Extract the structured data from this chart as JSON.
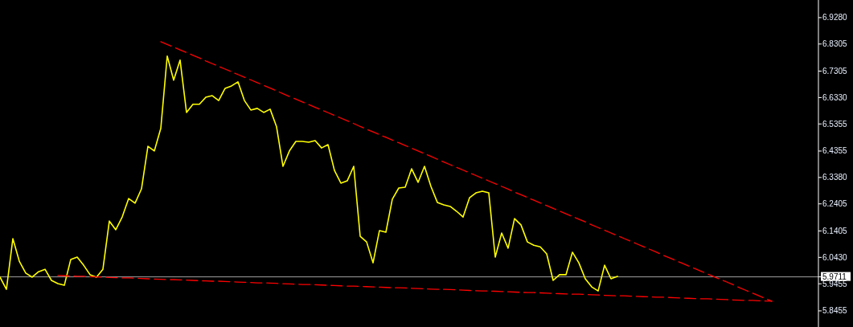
{
  "chart_data": {
    "type": "line",
    "categories": [
      null,
      null,
      null,
      null,
      null,
      null,
      null,
      null,
      null,
      null,
      null,
      null,
      null,
      null,
      null,
      null,
      null,
      null,
      null,
      null,
      null,
      null,
      null,
      null,
      null,
      null,
      null,
      null,
      null,
      null,
      null,
      null,
      null,
      null,
      null,
      null,
      null,
      null,
      null,
      null,
      null,
      null,
      null,
      null,
      null,
      null,
      null,
      null,
      null,
      null,
      null,
      null,
      null,
      null,
      null,
      null,
      null,
      null,
      null,
      null,
      null,
      null,
      null,
      null,
      null,
      null,
      null,
      null,
      null,
      null,
      null,
      null,
      null,
      null,
      null,
      null,
      null,
      null,
      null,
      null,
      null,
      null,
      null,
      null,
      null,
      null,
      null,
      null,
      null,
      null,
      null,
      null,
      null,
      null,
      null,
      null,
      null,
      null,
      null,
      null,
      null,
      null,
      null,
      null,
      null,
      null,
      null,
      null,
      null,
      null,
      null,
      null,
      null,
      null,
      null,
      null,
      null,
      null,
      null,
      null,
      null
    ],
    "ylim": [
      5.786,
      6.993
    ],
    "yticks": [
      {
        "value": 5.8455,
        "label": "5.8455"
      },
      {
        "value": 5.9455,
        "label": "5.9455"
      },
      {
        "value": 6.043,
        "label": "6.0430"
      },
      {
        "value": 6.1405,
        "label": "6.1405"
      },
      {
        "value": 6.2405,
        "label": "6.2405"
      },
      {
        "value": 6.338,
        "label": "6.3380"
      },
      {
        "value": 6.4355,
        "label": "6.4355"
      },
      {
        "value": 6.5355,
        "label": "6.5355"
      },
      {
        "value": 6.633,
        "label": "6.6330"
      },
      {
        "value": 6.7305,
        "label": "6.7305"
      },
      {
        "value": 6.8305,
        "label": "6.8305"
      },
      {
        "value": 6.928,
        "label": "6.9280"
      }
    ],
    "tick_labels": "y",
    "grid": false,
    "marker": "none",
    "line_style": "solid",
    "ref_lines": [
      {
        "axis": "y",
        "value": 5.9711,
        "label": "5.9711",
        "color": "#a0a0a0"
      }
    ],
    "series": [
      {
        "color": "#ffff00",
        "values": [
          5.97,
          5.925,
          6.112,
          6.029,
          5.985,
          5.97,
          5.99,
          5.999,
          5.958,
          5.946,
          5.94,
          6.035,
          6.044,
          6.014,
          5.979,
          5.97,
          5.999,
          6.177,
          6.145,
          6.192,
          6.26,
          6.243,
          6.296,
          6.453,
          6.436,
          6.519,
          6.786,
          6.697,
          6.771,
          6.578,
          6.608,
          6.608,
          6.634,
          6.64,
          6.622,
          6.667,
          6.676,
          6.691,
          6.622,
          6.587,
          6.593,
          6.578,
          6.59,
          6.525,
          6.379,
          6.436,
          6.471,
          6.471,
          6.468,
          6.474,
          6.447,
          6.459,
          6.364,
          6.317,
          6.326,
          6.379,
          6.121,
          6.1,
          6.023,
          6.142,
          6.136,
          6.258,
          6.299,
          6.302,
          6.37,
          6.32,
          6.379,
          6.305,
          6.246,
          6.237,
          6.231,
          6.213,
          6.192,
          6.263,
          6.281,
          6.287,
          6.281,
          6.044,
          6.133,
          6.077,
          6.186,
          6.163,
          6.1,
          6.088,
          6.082,
          6.056,
          5.958,
          5.979,
          5.979,
          6.062,
          6.023,
          5.964,
          5.934,
          5.919,
          6.014,
          5.964,
          5.973,
          null,
          null,
          null,
          null,
          null,
          null,
          null,
          null,
          null,
          null,
          null,
          null,
          null,
          null,
          null,
          null,
          null,
          null,
          null,
          null,
          null,
          null,
          null,
          null
        ]
      },
      {
        "color": "#ff0000",
        "line_style": "dashed",
        "values": [
          null,
          null,
          null,
          null,
          null,
          null,
          null,
          null,
          null,
          null,
          null,
          null,
          null,
          null,
          null,
          null,
          null,
          null,
          null,
          null,
          null,
          null,
          null,
          null,
          null,
          6.839,
          6.829,
          6.819,
          6.809,
          6.799,
          6.789,
          6.779,
          6.768,
          6.758,
          6.748,
          6.738,
          6.728,
          6.718,
          6.708,
          6.698,
          6.688,
          6.678,
          6.668,
          6.658,
          6.647,
          6.637,
          6.627,
          6.617,
          6.607,
          6.597,
          6.587,
          6.577,
          6.567,
          6.557,
          6.547,
          6.537,
          6.526,
          6.516,
          6.506,
          6.496,
          6.486,
          6.476,
          6.466,
          6.456,
          6.446,
          6.436,
          6.426,
          6.416,
          6.405,
          6.395,
          6.385,
          6.375,
          6.365,
          6.355,
          6.345,
          6.335,
          6.325,
          6.315,
          6.305,
          6.295,
          6.284,
          6.274,
          6.264,
          6.254,
          6.244,
          6.234,
          6.224,
          6.214,
          6.204,
          6.194,
          6.184,
          6.174,
          6.163,
          6.153,
          6.143,
          6.133,
          6.123,
          6.113,
          6.103,
          6.093,
          6.083,
          6.073,
          6.063,
          6.052,
          6.042,
          6.032,
          6.022,
          6.012,
          6.002,
          5.992,
          5.982,
          5.972,
          5.962,
          5.952,
          5.942,
          5.931,
          5.921,
          5.911,
          5.901,
          5.891,
          5.881
        ]
      },
      {
        "color": "#ff0000",
        "line_style": "dashed",
        "values": [
          null,
          null,
          null,
          null,
          null,
          null,
          null,
          null,
          null,
          5.976,
          5.975,
          5.974,
          5.973,
          5.973,
          5.972,
          5.971,
          5.97,
          5.969,
          5.968,
          5.967,
          5.967,
          5.966,
          5.965,
          5.964,
          5.963,
          5.962,
          5.961,
          5.961,
          5.96,
          5.959,
          5.958,
          5.957,
          5.956,
          5.955,
          5.955,
          5.954,
          5.953,
          5.952,
          5.951,
          5.95,
          5.949,
          5.949,
          5.948,
          5.947,
          5.946,
          5.945,
          5.944,
          5.943,
          5.943,
          5.942,
          5.941,
          5.94,
          5.939,
          5.938,
          5.937,
          5.937,
          5.936,
          5.935,
          5.934,
          5.933,
          5.932,
          5.931,
          5.931,
          5.93,
          5.929,
          5.928,
          5.927,
          5.926,
          5.925,
          5.925,
          5.924,
          5.923,
          5.922,
          5.921,
          5.92,
          5.919,
          5.919,
          5.918,
          5.917,
          5.916,
          5.915,
          5.914,
          5.913,
          5.913,
          5.912,
          5.911,
          5.91,
          5.909,
          5.908,
          5.907,
          5.907,
          5.906,
          5.905,
          5.904,
          5.903,
          5.902,
          5.901,
          5.901,
          5.9,
          5.899,
          5.898,
          5.897,
          5.896,
          5.896,
          5.895,
          5.894,
          5.893,
          5.892,
          5.891,
          5.89,
          5.89,
          5.889,
          5.888,
          5.887,
          5.886,
          5.885,
          5.884,
          5.884,
          5.883,
          5.882,
          5.881
        ]
      }
    ]
  }
}
